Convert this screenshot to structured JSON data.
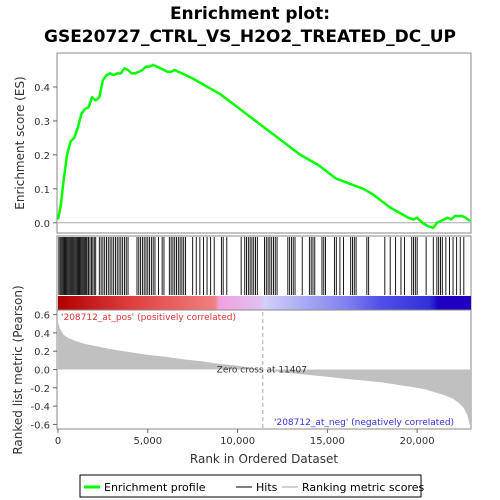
{
  "chart_data": [
    {
      "type": "line",
      "title": "Enrichment plot:",
      "subtitle": "GSE20727_CTRL_VS_H2O2_TREATED_DC_UP",
      "ylabel": "Enrichment score (ES)",
      "ylim": [
        -0.03,
        0.5
      ],
      "yticks": [
        0.0,
        0.1,
        0.2,
        0.3,
        0.4
      ],
      "ytick_labels": [
        "0.0",
        "0.1",
        "0.2",
        "0.3",
        "0.4"
      ],
      "xlim": [
        0,
        23000
      ],
      "grid": false,
      "series": [
        {
          "name": "Enrichment profile",
          "color": "#00ff00",
          "x": [
            0,
            150,
            300,
            500,
            700,
            900,
            1100,
            1300,
            1500,
            1700,
            1900,
            2100,
            2300,
            2500,
            2700,
            2900,
            3100,
            3300,
            3500,
            3700,
            3900,
            4100,
            4300,
            4500,
            4700,
            4900,
            5100,
            5300,
            5500,
            5700,
            5900,
            6100,
            6300,
            6500,
            6700,
            6900,
            7500,
            8000,
            8500,
            9000,
            9500,
            10000,
            10500,
            11000,
            11500,
            12000,
            12500,
            13000,
            13500,
            14000,
            14500,
            15000,
            15500,
            16000,
            16500,
            17000,
            17500,
            18000,
            18500,
            19000,
            19500,
            19800,
            20000,
            20300,
            20600,
            20900,
            21100,
            21300,
            21500,
            21700,
            21900,
            22100,
            22300,
            22500,
            22700,
            22950
          ],
          "y": [
            0.01,
            0.05,
            0.12,
            0.2,
            0.24,
            0.25,
            0.28,
            0.32,
            0.335,
            0.34,
            0.37,
            0.36,
            0.37,
            0.42,
            0.435,
            0.44,
            0.435,
            0.44,
            0.44,
            0.455,
            0.45,
            0.44,
            0.44,
            0.445,
            0.45,
            0.46,
            0.46,
            0.465,
            0.46,
            0.455,
            0.45,
            0.445,
            0.445,
            0.45,
            0.445,
            0.44,
            0.425,
            0.41,
            0.395,
            0.38,
            0.36,
            0.34,
            0.32,
            0.3,
            0.28,
            0.26,
            0.24,
            0.22,
            0.2,
            0.185,
            0.17,
            0.15,
            0.13,
            0.12,
            0.11,
            0.1,
            0.085,
            0.065,
            0.045,
            0.03,
            0.015,
            0.01,
            0.015,
            0.0,
            -0.01,
            -0.015,
            0.0,
            0.005,
            0.01,
            0.015,
            0.01,
            0.02,
            0.02,
            0.02,
            0.015,
            0.005
          ]
        }
      ]
    },
    {
      "type": "bar",
      "title": "",
      "xlabel": "",
      "ylabel": "",
      "series_name": "Hits",
      "hit_positions": [
        50,
        120,
        180,
        240,
        300,
        360,
        420,
        480,
        540,
        600,
        660,
        720,
        780,
        840,
        900,
        960,
        1020,
        1080,
        1140,
        1200,
        1260,
        1320,
        1380,
        1440,
        1500,
        1560,
        1620,
        1700,
        1780,
        1860,
        1940,
        2020,
        2100,
        2300,
        2400,
        2500,
        2600,
        2700,
        2800,
        2900,
        3000,
        3100,
        3200,
        3300,
        3400,
        3500,
        3600,
        3700,
        3800,
        3900,
        4400,
        4500,
        4600,
        4700,
        4800,
        4900,
        5000,
        5100,
        5200,
        5300,
        5400,
        5600,
        5800,
        5900,
        6200,
        6300,
        6400,
        6500,
        6600,
        6700,
        6800,
        6900,
        7000,
        7100,
        7500,
        7700,
        7900,
        8100,
        8300,
        8500,
        8700,
        9100,
        9200,
        9400,
        10200,
        10400,
        10500,
        10600,
        10700,
        10800,
        10900,
        11000,
        11100,
        11500,
        11600,
        11700,
        11800,
        11900,
        12000,
        12100,
        12200,
        12800,
        12900,
        13000,
        13100,
        13200,
        13600,
        14000,
        14100,
        14200,
        14300,
        14700,
        14800,
        14900,
        15400,
        15500,
        15700,
        15900,
        16300,
        16400,
        16500,
        16600,
        17200,
        17300,
        18200,
        18500,
        18800,
        19100,
        19300,
        19700,
        19800,
        19900,
        20000,
        20500,
        20900,
        21100,
        21200,
        21300,
        21400,
        21600,
        21800,
        22000,
        22200,
        22400,
        22600
      ]
    },
    {
      "type": "area",
      "title": "",
      "xlabel": "Rank in Ordered Dataset",
      "ylabel": "Ranked list metric (Pearson)",
      "xlim": [
        0,
        23000
      ],
      "ylim": [
        -0.65,
        0.65
      ],
      "xticks": [
        0,
        5000,
        10000,
        15000,
        20000
      ],
      "xtick_labels": [
        "0",
        "5,000",
        "10,000",
        "15,000",
        "20,000"
      ],
      "yticks": [
        0.6,
        0.4,
        0.2,
        0.0,
        -0.2,
        -0.4,
        -0.6
      ],
      "ytick_labels": [
        "0.6",
        "0.4",
        "0.2",
        "0.0",
        "-0.2",
        "-0.4",
        "-0.6"
      ],
      "series_name": "Ranking metric scores",
      "color": "#c0c0c0",
      "x": [
        0,
        100,
        300,
        600,
        1000,
        1500,
        2000,
        3000,
        4000,
        5000,
        6000,
        7000,
        8000,
        9000,
        10000,
        11000,
        11407,
        12000,
        13000,
        14000,
        15000,
        16000,
        17000,
        18000,
        19000,
        20000,
        20500,
        21000,
        21500,
        22000,
        22300,
        22600,
        22800,
        22950
      ],
      "y": [
        0.52,
        0.45,
        0.38,
        0.34,
        0.31,
        0.28,
        0.26,
        0.22,
        0.19,
        0.16,
        0.14,
        0.11,
        0.09,
        0.06,
        0.04,
        0.01,
        0.0,
        -0.02,
        -0.04,
        -0.06,
        -0.08,
        -0.1,
        -0.12,
        -0.14,
        -0.17,
        -0.2,
        -0.22,
        -0.25,
        -0.28,
        -0.32,
        -0.36,
        -0.42,
        -0.5,
        -0.62
      ],
      "zero_cross_label": "Zero cross at 11407",
      "zero_cross": 11407,
      "pos_label": "'208712_at_pos' (positively correlated)",
      "neg_label": "'208712_at_neg' (negatively correlated)"
    }
  ],
  "legend": {
    "items": [
      {
        "label": "Enrichment profile",
        "color": "#00ff00"
      },
      {
        "label": "Hits",
        "color": "#808080"
      },
      {
        "label": "Ranking metric scores",
        "color": "#d0d0d0"
      }
    ]
  },
  "colors": {
    "pos_label": "#e03030",
    "neg_label": "#3030e0",
    "bar_red": "#cc0000",
    "bar_blue": "#2a00c8"
  }
}
